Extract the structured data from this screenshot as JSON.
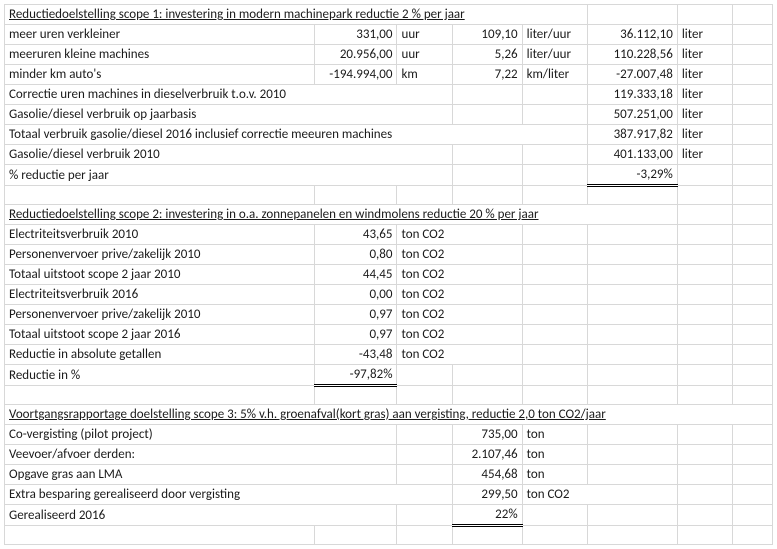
{
  "colors": {
    "grid": "#d8d8d8",
    "text": "#1a1a1a",
    "background": "#ffffff"
  },
  "typography": {
    "family": "Calibri",
    "size_pt": 10
  },
  "s1": {
    "header": "Reductiedoelstelling scope 1: investering in modern machinepark reductie 2 % per jaar",
    "r1": {
      "label": "meer uren verkleiner",
      "v1": "331,00",
      "u1": "uur",
      "v2": "109,10",
      "u2": "liter/uur",
      "v3": "36.112,10",
      "u3": "liter"
    },
    "r2": {
      "label": "meeruren kleine machines",
      "v1": "20.956,00",
      "u1": "uur",
      "v2": "5,26",
      "u2": "liter/uur",
      "v3": "110.228,56",
      "u3": "liter"
    },
    "r3": {
      "label": "minder km auto's",
      "v1": "-194.994,00",
      "u1": "km",
      "v2": "7,22",
      "u2": "km/liter",
      "v3": "-27.007,48",
      "u3": "liter"
    },
    "r4": {
      "label": "Correctie uren machines in dieselverbruik t.o.v. 2010",
      "v3": "119.333,18",
      "u3": "liter"
    },
    "r5": {
      "label": "Gasolie/diesel verbruik op jaarbasis",
      "v3": "507.251,00",
      "u3": "liter"
    },
    "r6": {
      "label": "Totaal verbruik gasolie/diesel 2016 inclusief correctie meeuren machines",
      "v3": "387.917,82",
      "u3": "liter"
    },
    "r7": {
      "label": "Gasolie/diesel verbruik 2010",
      "v3": "401.133,00",
      "u3": "liter"
    },
    "r8": {
      "label": "% reductie per jaar",
      "v3": "-3,29%"
    }
  },
  "s2": {
    "header": "Reductiedoelstelling scope 2: investering in o.a. zonnepanelen en windmolens reductie 20 % per jaar",
    "r1": {
      "label": "Electriteitsverbruik 2010",
      "v1": "43,65",
      "u1": "ton CO2"
    },
    "r2": {
      "label": "Personenvervoer prive/zakelijk 2010",
      "v1": "0,80",
      "u1": "ton CO2"
    },
    "r3": {
      "label": "Totaal uitstoot scope 2 jaar 2010",
      "v1": "44,45",
      "u1": "ton CO2"
    },
    "r4": {
      "label": "Electriteitsverbruik 2016",
      "v1": "0,00",
      "u1": "ton CO2"
    },
    "r5": {
      "label": "Personenvervoer prive/zakelijk 2010",
      "v1": "0,97",
      "u1": "ton CO2"
    },
    "r6": {
      "label": "Totaal uitstoot scope 2 jaar 2016",
      "v1": "0,97",
      "u1": "ton CO2"
    },
    "r7": {
      "label": "Reductie in absolute getallen",
      "v1": "-43,48",
      "u1": "ton CO2"
    },
    "r8": {
      "label": "Reductie in %",
      "v1": "-97,82%"
    }
  },
  "s3": {
    "header": "Voortgangsrapportage doelstelling scope 3: 5% v.h. groenafval(kort gras) aan vergisting, reductie 2,0 ton CO2/jaar",
    "r1": {
      "label": "Co-vergisting (pilot project)",
      "v1": "735,00",
      "u1": "ton"
    },
    "r2": {
      "label": "Veevoer/afvoer derden:",
      "v1": "2.107,46",
      "u1": "ton"
    },
    "r3": {
      "label": "Opgave gras aan LMA",
      "v1": "454,68",
      "u1": "ton"
    },
    "r4": {
      "label": "Extra besparing gerealiseerd door vergisting",
      "v1": "299,50",
      "u1": "ton CO2"
    },
    "r5": {
      "label": "Gerealiseerd 2016",
      "v1": "22%"
    }
  }
}
